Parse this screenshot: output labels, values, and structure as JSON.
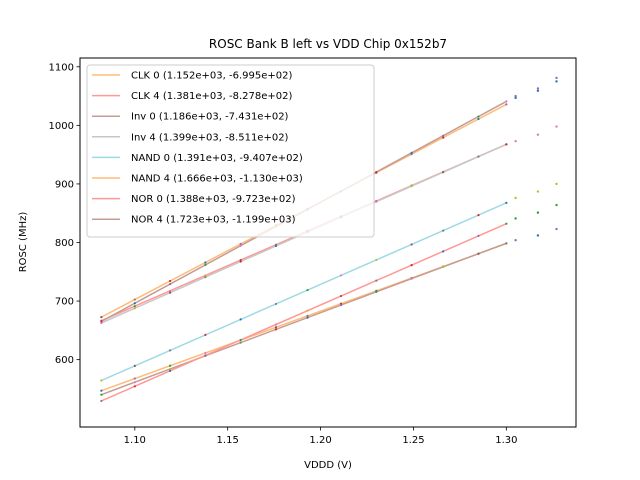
{
  "chart_data": {
    "type": "line",
    "title": "ROSC Bank B left vs VDD Chip 0x152b7",
    "xlabel": "VDDD (V)",
    "ylabel": "ROSC (MHz)",
    "xlim": [
      1.0705,
      1.3375
    ],
    "ylim": [
      485,
      1115
    ],
    "xticks": [
      1.1,
      1.15,
      1.2,
      1.25,
      1.3
    ],
    "xtick_labels": [
      "1.10",
      "1.15",
      "1.20",
      "1.25",
      "1.30"
    ],
    "yticks": [
      600,
      700,
      800,
      900,
      1000,
      1100
    ],
    "ytick_labels": [
      "600",
      "700",
      "800",
      "900",
      "1000",
      "1100"
    ],
    "grid": false,
    "legend_position": "top-left",
    "fit_x_range": [
      1.082,
      1.3
    ],
    "series": [
      {
        "name": "CLK 0",
        "label": "CLK 0 (1.152e+03, -6.995e+02)",
        "slope": 1152.0,
        "intercept": -699.5,
        "color": "#ffbb78"
      },
      {
        "name": "CLK 4",
        "label": "CLK 4 (1.381e+03, -8.278e+02)",
        "slope": 1381.0,
        "intercept": -827.8,
        "color": "#ff9896"
      },
      {
        "name": "Inv 0",
        "label": "Inv 0 (1.186e+03, -7.431e+02)",
        "slope": 1186.0,
        "intercept": -743.1,
        "color": "#c49c94"
      },
      {
        "name": "Inv 4",
        "label": "Inv 4 (1.399e+03, -8.511e+02)",
        "slope": 1399.0,
        "intercept": -851.1,
        "color": "#c7c7c7"
      },
      {
        "name": "NAND 0",
        "label": "NAND 0 (1.391e+03, -9.407e+02)",
        "slope": 1391.0,
        "intercept": -940.7,
        "color": "#9edae5"
      },
      {
        "name": "NAND 4",
        "label": "NAND 4 (1.666e+03, -1.130e+03)",
        "slope": 1666.0,
        "intercept": -1130.0,
        "color": "#ffbb78"
      },
      {
        "name": "NOR 0",
        "label": "NOR 0 (1.388e+03, -9.723e+02)",
        "slope": 1388.0,
        "intercept": -972.3,
        "color": "#ff9896"
      },
      {
        "name": "NOR 4",
        "label": "NOR 4 (1.723e+03, -1.199e+03)",
        "slope": 1723.0,
        "intercept": -1199.0,
        "color": "#c49c94"
      }
    ],
    "measured_x": [
      1.082,
      1.1,
      1.119,
      1.138,
      1.157,
      1.176,
      1.193,
      1.211,
      1.23,
      1.249,
      1.266,
      1.285,
      1.3,
      1.305,
      1.317,
      1.327
    ],
    "extra_points": [
      {
        "x": 1.305,
        "y": 1047,
        "color": "#1f77b4"
      },
      {
        "x": 1.305,
        "y": 1050,
        "color": "#9467bd"
      },
      {
        "x": 1.317,
        "y": 1059,
        "color": "#1f77b4"
      },
      {
        "x": 1.317,
        "y": 1063,
        "color": "#9467bd"
      },
      {
        "x": 1.327,
        "y": 1075,
        "color": "#1f77b4"
      },
      {
        "x": 1.327,
        "y": 1081,
        "color": "#9467bd"
      },
      {
        "x": 1.305,
        "y": 973,
        "color": "#e377c2"
      },
      {
        "x": 1.317,
        "y": 984,
        "color": "#e377c2"
      },
      {
        "x": 1.327,
        "y": 998,
        "color": "#e377c2"
      },
      {
        "x": 1.305,
        "y": 876,
        "color": "#bcbd22"
      },
      {
        "x": 1.317,
        "y": 887,
        "color": "#bcbd22"
      },
      {
        "x": 1.327,
        "y": 900,
        "color": "#bcbd22"
      },
      {
        "x": 1.305,
        "y": 841,
        "color": "#2ca02c"
      },
      {
        "x": 1.317,
        "y": 851,
        "color": "#2ca02c"
      },
      {
        "x": 1.327,
        "y": 864,
        "color": "#2ca02c"
      },
      {
        "x": 1.305,
        "y": 804,
        "color": "#9467bd"
      },
      {
        "x": 1.317,
        "y": 812,
        "color": "#1f77b4"
      },
      {
        "x": 1.327,
        "y": 823,
        "color": "#9467bd"
      }
    ],
    "point_colors": [
      "#1f77b4",
      "#9467bd",
      "#2ca02c",
      "#e377c2",
      "#bcbd22",
      "#8c564b",
      "#7f7f7f",
      "#d62728"
    ]
  }
}
